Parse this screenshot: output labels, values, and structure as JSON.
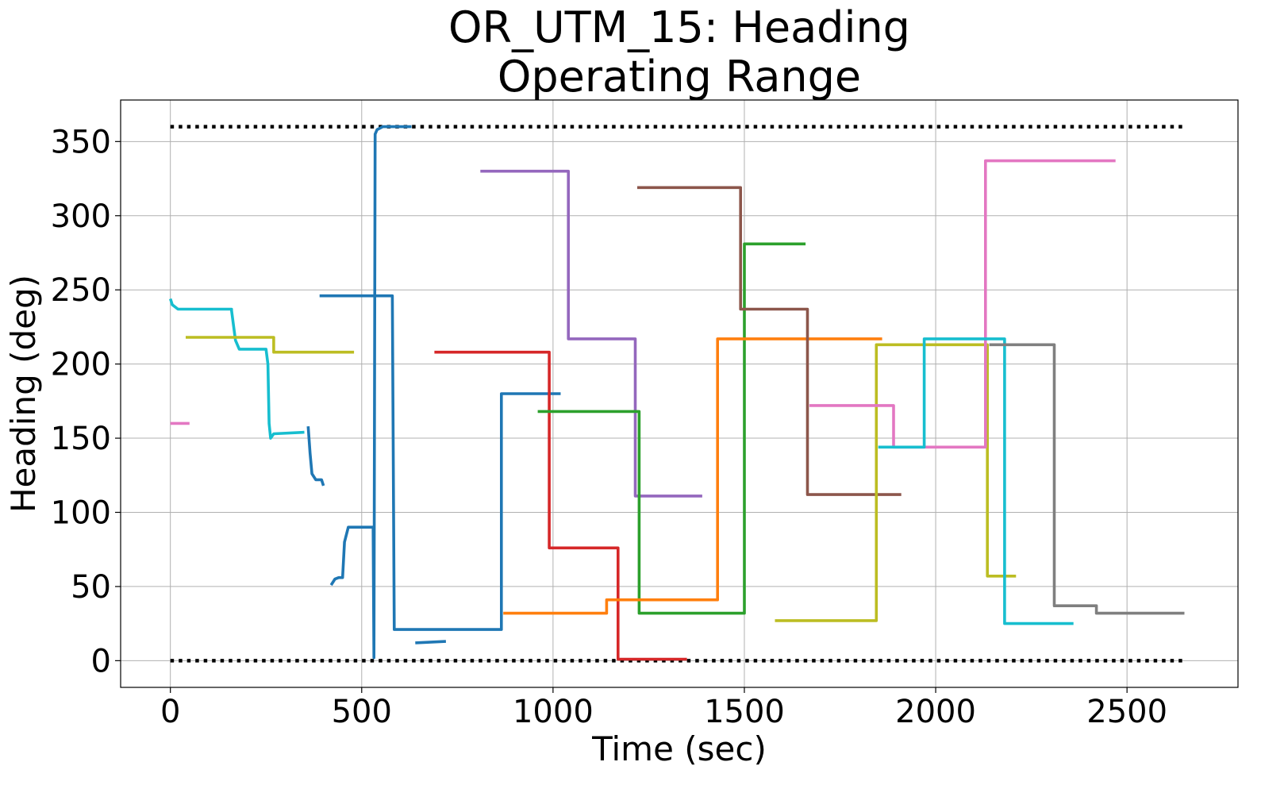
{
  "chart_data": {
    "type": "line",
    "title": "OR_UTM_15: Heading\nOperating Range",
    "title_lines": [
      "OR_UTM_15: Heading",
      "Operating Range"
    ],
    "xlabel": "Time (sec)",
    "ylabel": "Heading (deg)",
    "xlim": [
      -130,
      2790
    ],
    "ylim": [
      -18,
      378
    ],
    "x_ticks": [
      0,
      500,
      1000,
      1500,
      2000,
      2500
    ],
    "y_ticks": [
      0,
      50,
      100,
      150,
      200,
      250,
      300,
      350
    ],
    "grid": true,
    "legend": "none",
    "limits": [
      {
        "y": 360,
        "x": [
          0,
          2650
        ],
        "style": "dotted",
        "color": "#000000"
      },
      {
        "y": 0,
        "x": [
          0,
          2650
        ],
        "style": "dotted",
        "color": "#000000"
      }
    ],
    "series": [
      {
        "color": "#17becf",
        "points": [
          [
            0,
            244
          ],
          [
            5,
            240
          ],
          [
            20,
            237
          ],
          [
            160,
            237
          ],
          [
            160,
            236
          ],
          [
            170,
            216
          ],
          [
            180,
            210
          ],
          [
            250,
            210
          ],
          [
            255,
            200
          ],
          [
            258,
            160
          ],
          [
            262,
            150
          ],
          [
            270,
            153
          ],
          [
            350,
            154
          ]
        ]
      },
      {
        "color": "#bcbd22",
        "points": [
          [
            40,
            218
          ],
          [
            270,
            218
          ],
          [
            270,
            208
          ],
          [
            480,
            208
          ]
        ]
      },
      {
        "color": "#e377c2",
        "points": [
          [
            0,
            160
          ],
          [
            50,
            160
          ]
        ]
      },
      {
        "color": "#1f77b4",
        "points": [
          [
            360,
            158
          ],
          [
            365,
            140
          ],
          [
            370,
            126
          ],
          [
            380,
            122
          ],
          [
            395,
            122
          ],
          [
            400,
            118
          ]
        ]
      },
      {
        "color": "#1f77b4",
        "points": [
          [
            420,
            51
          ],
          [
            430,
            55
          ],
          [
            440,
            56
          ],
          [
            450,
            56
          ],
          [
            455,
            80
          ],
          [
            465,
            90
          ],
          [
            490,
            90
          ],
          [
            530,
            90
          ]
        ]
      },
      {
        "color": "#1f77b4",
        "points": [
          [
            530,
            90
          ],
          [
            532,
            2
          ],
          [
            535,
            355
          ],
          [
            540,
            358
          ],
          [
            555,
            360
          ],
          [
            630,
            360
          ]
        ]
      },
      {
        "color": "#1f77b4",
        "points": [
          [
            390,
            246
          ],
          [
            580,
            246
          ],
          [
            585,
            21
          ],
          [
            865,
            21
          ],
          [
            865,
            180
          ],
          [
            1020,
            180
          ]
        ]
      },
      {
        "color": "#1f77b4",
        "points": [
          [
            640,
            12
          ],
          [
            720,
            13
          ]
        ]
      },
      {
        "color": "#9467bd",
        "points": [
          [
            810,
            330
          ],
          [
            1040,
            330
          ],
          [
            1040,
            217
          ],
          [
            1215,
            217
          ],
          [
            1215,
            111
          ],
          [
            1390,
            111
          ]
        ]
      },
      {
        "color": "#d62728",
        "points": [
          [
            690,
            208
          ],
          [
            990,
            208
          ],
          [
            990,
            76
          ],
          [
            1170,
            76
          ],
          [
            1170,
            1
          ],
          [
            1350,
            1
          ]
        ]
      },
      {
        "color": "#2ca02c",
        "points": [
          [
            960,
            168
          ],
          [
            1225,
            168
          ],
          [
            1225,
            32
          ],
          [
            1500,
            32
          ],
          [
            1500,
            281
          ],
          [
            1660,
            281
          ]
        ]
      },
      {
        "color": "#ff7f0e",
        "points": [
          [
            870,
            32
          ],
          [
            1140,
            32
          ],
          [
            1140,
            41
          ],
          [
            1430,
            41
          ],
          [
            1430,
            217
          ],
          [
            1860,
            217
          ]
        ]
      },
      {
        "color": "#8c564b",
        "points": [
          [
            1220,
            319
          ],
          [
            1490,
            319
          ],
          [
            1490,
            237
          ],
          [
            1665,
            237
          ],
          [
            1665,
            112
          ],
          [
            1910,
            112
          ]
        ]
      },
      {
        "color": "#bcbd22",
        "points": [
          [
            1580,
            27
          ],
          [
            1845,
            27
          ],
          [
            1845,
            213
          ],
          [
            2135,
            213
          ],
          [
            2135,
            57
          ],
          [
            2210,
            57
          ]
        ]
      },
      {
        "color": "#e377c2",
        "points": [
          [
            1670,
            172
          ],
          [
            1890,
            172
          ],
          [
            1890,
            144
          ],
          [
            2130,
            144
          ],
          [
            2130,
            337
          ],
          [
            2470,
            337
          ]
        ]
      },
      {
        "color": "#17becf",
        "points": [
          [
            1850,
            144
          ],
          [
            1970,
            144
          ],
          [
            1970,
            217
          ],
          [
            2180,
            217
          ],
          [
            2180,
            25
          ],
          [
            2360,
            25
          ]
        ]
      },
      {
        "color": "#7f7f7f",
        "points": [
          [
            2140,
            213
          ],
          [
            2310,
            213
          ],
          [
            2310,
            37
          ],
          [
            2420,
            37
          ],
          [
            2420,
            32
          ],
          [
            2650,
            32
          ]
        ]
      }
    ]
  }
}
